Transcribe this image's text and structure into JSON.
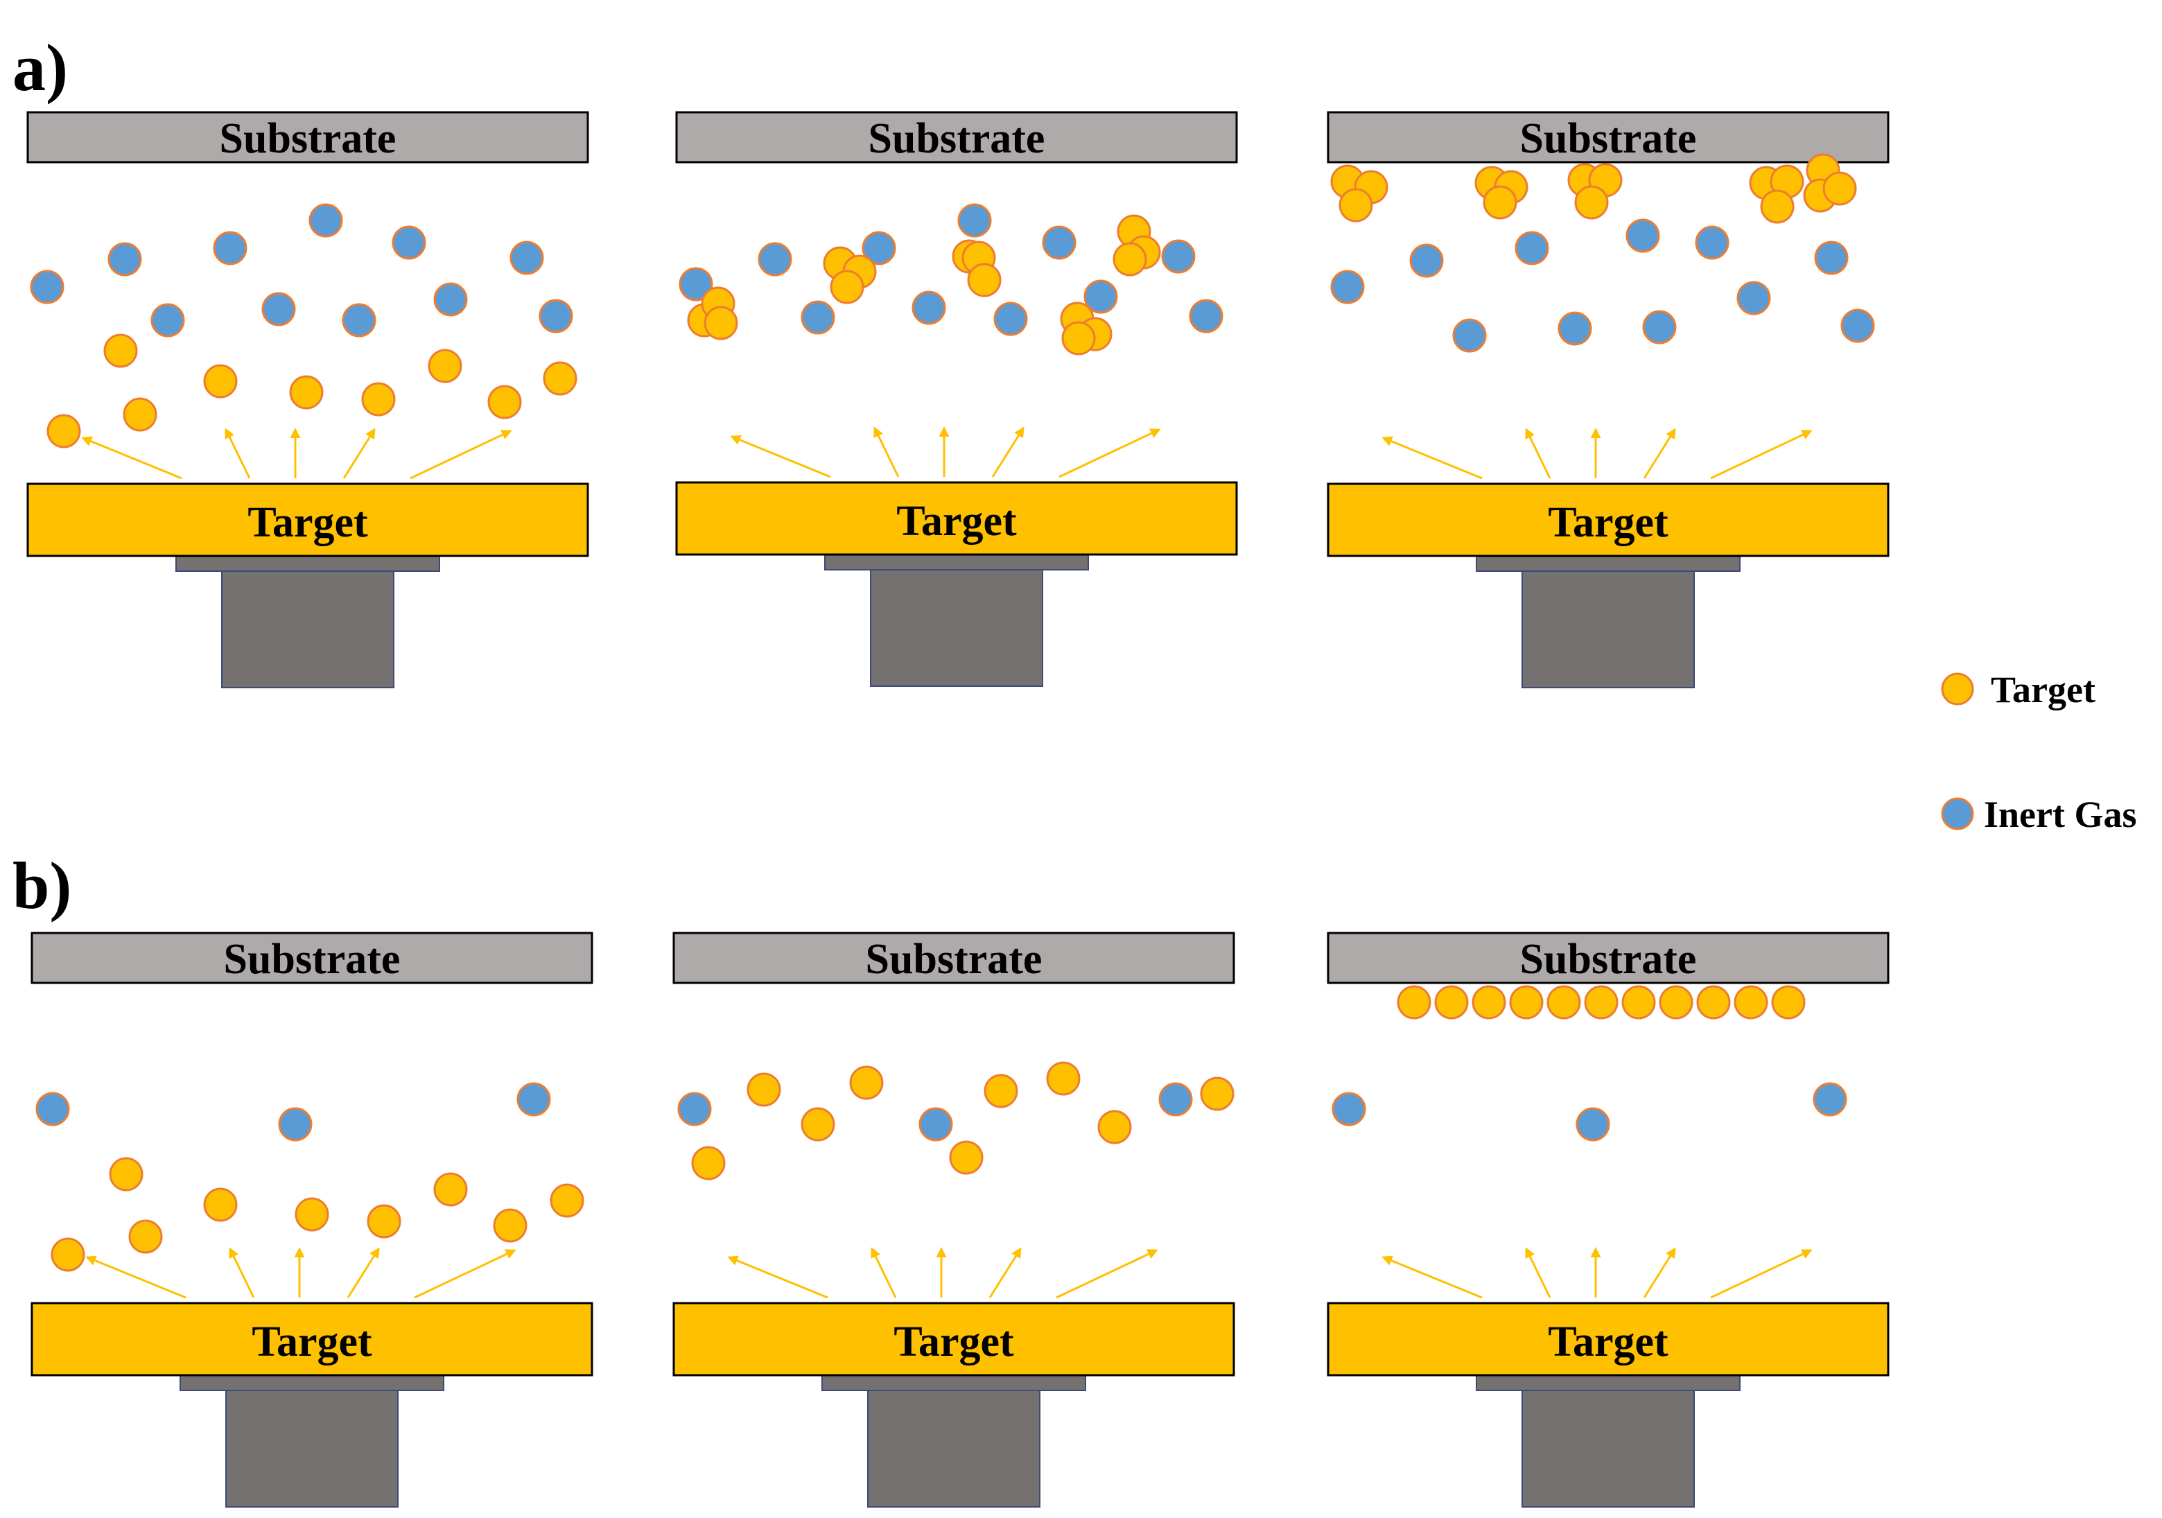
{
  "labels": {
    "substrate": "Substrate",
    "target": "Target",
    "row_a": "a)",
    "row_b": "b)"
  },
  "legend": {
    "target": "Target",
    "inert_gas": "Inert Gas"
  },
  "colors": {
    "substrate_fill": "#aeaaaa",
    "target_fill": "#ffc000",
    "target_particle": "#ffc000",
    "particle_outline": "#ed7d31",
    "inert_gas_particle": "#5b9bd5",
    "holder_fill": "#767171",
    "arrow": "#ffc000"
  }
}
